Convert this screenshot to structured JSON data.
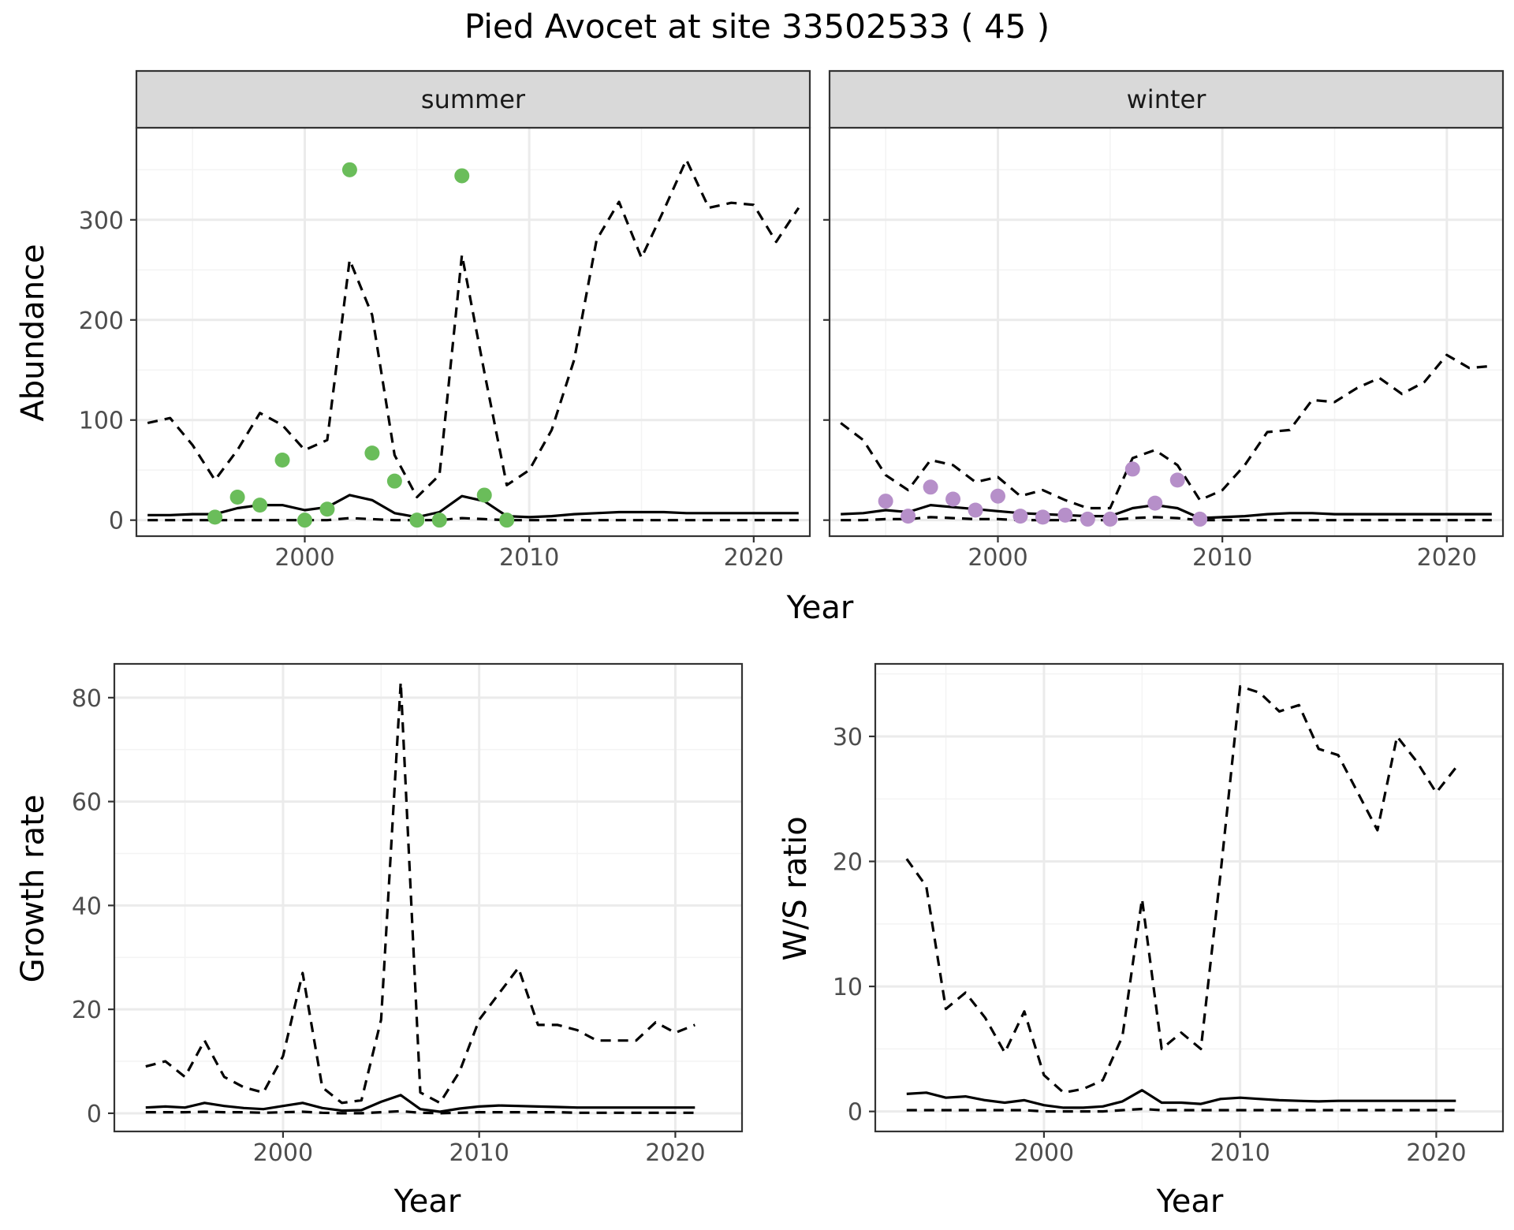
{
  "title": "Pied Avocet at site 33502533 ( 45 )",
  "colors": {
    "summer_points": "#6abd5a",
    "winter_points": "#b68fc9",
    "line": "#000000",
    "grid_major": "#ebebeb",
    "grid_minor": "#f4f4f4",
    "panel_border": "#333333",
    "strip_fill": "#d9d9d9"
  },
  "chart_data": [
    {
      "type": "line",
      "facet": "summer",
      "strip_label": "summer",
      "xlabel": "Year",
      "ylabel": "Abundance",
      "xlim": [
        1992.5,
        2022.5
      ],
      "ylim": [
        -16,
        392
      ],
      "x_ticks": [
        2000,
        2010,
        2020
      ],
      "y_ticks": [
        0,
        100,
        200,
        300
      ],
      "x_tick_labels": [
        "2000",
        "2010",
        "2020"
      ],
      "y_tick_labels": [
        "0",
        "100",
        "200",
        "300"
      ],
      "grid": true,
      "lines": {
        "x": [
          1993,
          1994,
          1995,
          1996,
          1997,
          1998,
          1999,
          2000,
          2001,
          2002,
          2003,
          2004,
          2005,
          2006,
          2007,
          2008,
          2009,
          2010,
          2011,
          2012,
          2013,
          2014,
          2015,
          2016,
          2017,
          2018,
          2019,
          2020,
          2021,
          2022
        ],
        "estimate": [
          5,
          5,
          6,
          6,
          12,
          15,
          15,
          10,
          13,
          25,
          20,
          7,
          3,
          8,
          24,
          19,
          4,
          3,
          4,
          6,
          7,
          8,
          8,
          8,
          7,
          7,
          7,
          7,
          7,
          7
        ],
        "upper": [
          97,
          102,
          75,
          40,
          70,
          107,
          95,
          70,
          80,
          260,
          205,
          65,
          23,
          45,
          265,
          148,
          35,
          50,
          90,
          160,
          280,
          318,
          262,
          310,
          360,
          312,
          317,
          315,
          278,
          312
        ],
        "lower": [
          0,
          0,
          0,
          0,
          0,
          0,
          0,
          0,
          0,
          2,
          1,
          0,
          0,
          0,
          2,
          1,
          0,
          0,
          0,
          0,
          0,
          0,
          0,
          0,
          0,
          0,
          0,
          0,
          0,
          0
        ]
      },
      "points": {
        "x": [
          1996,
          1997,
          1998,
          1999,
          2000,
          2001,
          2002,
          2003,
          2004,
          2005,
          2006,
          2007,
          2008,
          2009
        ],
        "y": [
          3,
          23,
          15,
          60,
          0,
          11,
          350,
          67,
          39,
          0,
          0,
          344,
          25,
          0
        ]
      }
    },
    {
      "type": "line",
      "facet": "winter",
      "strip_label": "winter",
      "xlabel": "Year",
      "ylabel": "",
      "xlim": [
        1992.5,
        2022.5
      ],
      "ylim": [
        -16,
        392
      ],
      "x_ticks": [
        2000,
        2010,
        2020
      ],
      "y_ticks": [
        0,
        100,
        200,
        300
      ],
      "x_tick_labels": [
        "2000",
        "2010",
        "2020"
      ],
      "grid": true,
      "lines": {
        "x": [
          1993,
          1994,
          1995,
          1996,
          1997,
          1998,
          1999,
          2000,
          2001,
          2002,
          2003,
          2004,
          2005,
          2006,
          2007,
          2008,
          2009,
          2010,
          2011,
          2012,
          2013,
          2014,
          2015,
          2016,
          2017,
          2018,
          2019,
          2020,
          2021,
          2022
        ],
        "estimate": [
          6,
          7,
          10,
          8,
          15,
          13,
          11,
          9,
          7,
          6,
          5,
          4,
          4,
          12,
          15,
          12,
          2,
          3,
          4,
          6,
          7,
          7,
          6,
          6,
          6,
          6,
          6,
          6,
          6,
          6
        ],
        "upper": [
          97,
          80,
          45,
          30,
          60,
          55,
          38,
          43,
          24,
          30,
          20,
          12,
          12,
          62,
          70,
          55,
          20,
          30,
          55,
          88,
          90,
          120,
          118,
          132,
          142,
          126,
          138,
          165,
          152,
          154
        ],
        "lower": [
          0,
          0,
          1,
          1,
          3,
          2,
          1,
          1,
          0,
          0,
          0,
          0,
          0,
          2,
          3,
          2,
          0,
          0,
          0,
          0,
          0,
          0,
          0,
          0,
          0,
          0,
          0,
          0,
          0,
          0
        ]
      },
      "points": {
        "x": [
          1995,
          1996,
          1997,
          1998,
          1999,
          2000,
          2001,
          2002,
          2003,
          2004,
          2005,
          2006,
          2007,
          2008,
          2009
        ],
        "y": [
          19,
          4,
          33,
          21,
          10,
          24,
          4,
          3,
          5,
          1,
          1,
          51,
          17,
          40,
          1
        ]
      }
    },
    {
      "type": "line",
      "facet": "growth",
      "xlabel": "Year",
      "ylabel": "Growth rate",
      "xlim": [
        1991.4,
        2023.4
      ],
      "ylim": [
        -3.5,
        86.5
      ],
      "x_ticks": [
        2000,
        2010,
        2020
      ],
      "y_ticks": [
        0,
        20,
        40,
        60,
        80
      ],
      "x_tick_labels": [
        "2000",
        "2010",
        "2020"
      ],
      "y_tick_labels": [
        "0",
        "20",
        "40",
        "60",
        "80"
      ],
      "grid": true,
      "lines": {
        "x": [
          1993,
          1994,
          1995,
          1996,
          1997,
          1998,
          1999,
          2000,
          2001,
          2002,
          2003,
          2004,
          2005,
          2006,
          2007,
          2008,
          2009,
          2010,
          2011,
          2012,
          2013,
          2014,
          2015,
          2016,
          2017,
          2018,
          2019,
          2020,
          2021
        ],
        "estimate": [
          1.1,
          1.3,
          1.1,
          2.0,
          1.4,
          1.0,
          0.8,
          1.4,
          2.0,
          1.0,
          0.5,
          0.6,
          2.2,
          3.5,
          0.8,
          0.3,
          0.9,
          1.3,
          1.5,
          1.4,
          1.3,
          1.2,
          1.1,
          1.1,
          1.1,
          1.1,
          1.1,
          1.1,
          1.1
        ],
        "upper": [
          9,
          10,
          7,
          14,
          7,
          5,
          4,
          11,
          27,
          5,
          2,
          2.5,
          18,
          83,
          4,
          2,
          8,
          18,
          23,
          28,
          17,
          17,
          16,
          14,
          14,
          14,
          17.5,
          15.5,
          17
        ],
        "lower": [
          0.2,
          0.2,
          0.2,
          0.3,
          0.2,
          0.2,
          0.1,
          0.2,
          0.3,
          0.1,
          0,
          0,
          0.2,
          0.4,
          0.1,
          0,
          0.1,
          0.2,
          0.2,
          0.2,
          0.2,
          0.2,
          0.1,
          0.1,
          0.1,
          0.1,
          0.1,
          0.1,
          0.1
        ]
      }
    },
    {
      "type": "line",
      "facet": "ratio",
      "xlabel": "Year",
      "ylabel": "W/S ratio",
      "xlim": [
        1991.4,
        2023.4
      ],
      "ylim": [
        -1.6,
        35.8
      ],
      "x_ticks": [
        2000,
        2010,
        2020
      ],
      "y_ticks": [
        0,
        10,
        20,
        30
      ],
      "x_tick_labels": [
        "2000",
        "2010",
        "2020"
      ],
      "y_tick_labels": [
        "0",
        "10",
        "20",
        "30"
      ],
      "grid": true,
      "lines": {
        "x": [
          1993,
          1994,
          1995,
          1996,
          1997,
          1998,
          1999,
          2000,
          2001,
          2002,
          2003,
          2004,
          2005,
          2006,
          2007,
          2008,
          2009,
          2010,
          2011,
          2012,
          2013,
          2014,
          2015,
          2016,
          2017,
          2018,
          2019,
          2020,
          2021
        ],
        "estimate": [
          1.4,
          1.5,
          1.1,
          1.2,
          0.9,
          0.7,
          0.9,
          0.5,
          0.3,
          0.3,
          0.4,
          0.8,
          1.7,
          0.7,
          0.7,
          0.6,
          1.0,
          1.1,
          1.0,
          0.9,
          0.85,
          0.8,
          0.85,
          0.85,
          0.85,
          0.85,
          0.85,
          0.85,
          0.85
        ],
        "upper": [
          20.2,
          18,
          8.2,
          9.5,
          7.5,
          4.7,
          8,
          2.9,
          1.5,
          1.8,
          2.5,
          6,
          17,
          5,
          6.3,
          5,
          19,
          34,
          33.5,
          32,
          32.5,
          29,
          28.5,
          25.5,
          22.5,
          30,
          28,
          25.5,
          27.5
        ],
        "lower": [
          0.1,
          0.1,
          0.1,
          0.1,
          0.1,
          0.1,
          0.1,
          0,
          0,
          0,
          0,
          0.1,
          0.2,
          0.1,
          0.1,
          0.1,
          0.1,
          0.1,
          0.1,
          0.1,
          0.1,
          0.1,
          0.1,
          0.1,
          0.1,
          0.1,
          0.1,
          0.1,
          0.1
        ]
      }
    }
  ]
}
